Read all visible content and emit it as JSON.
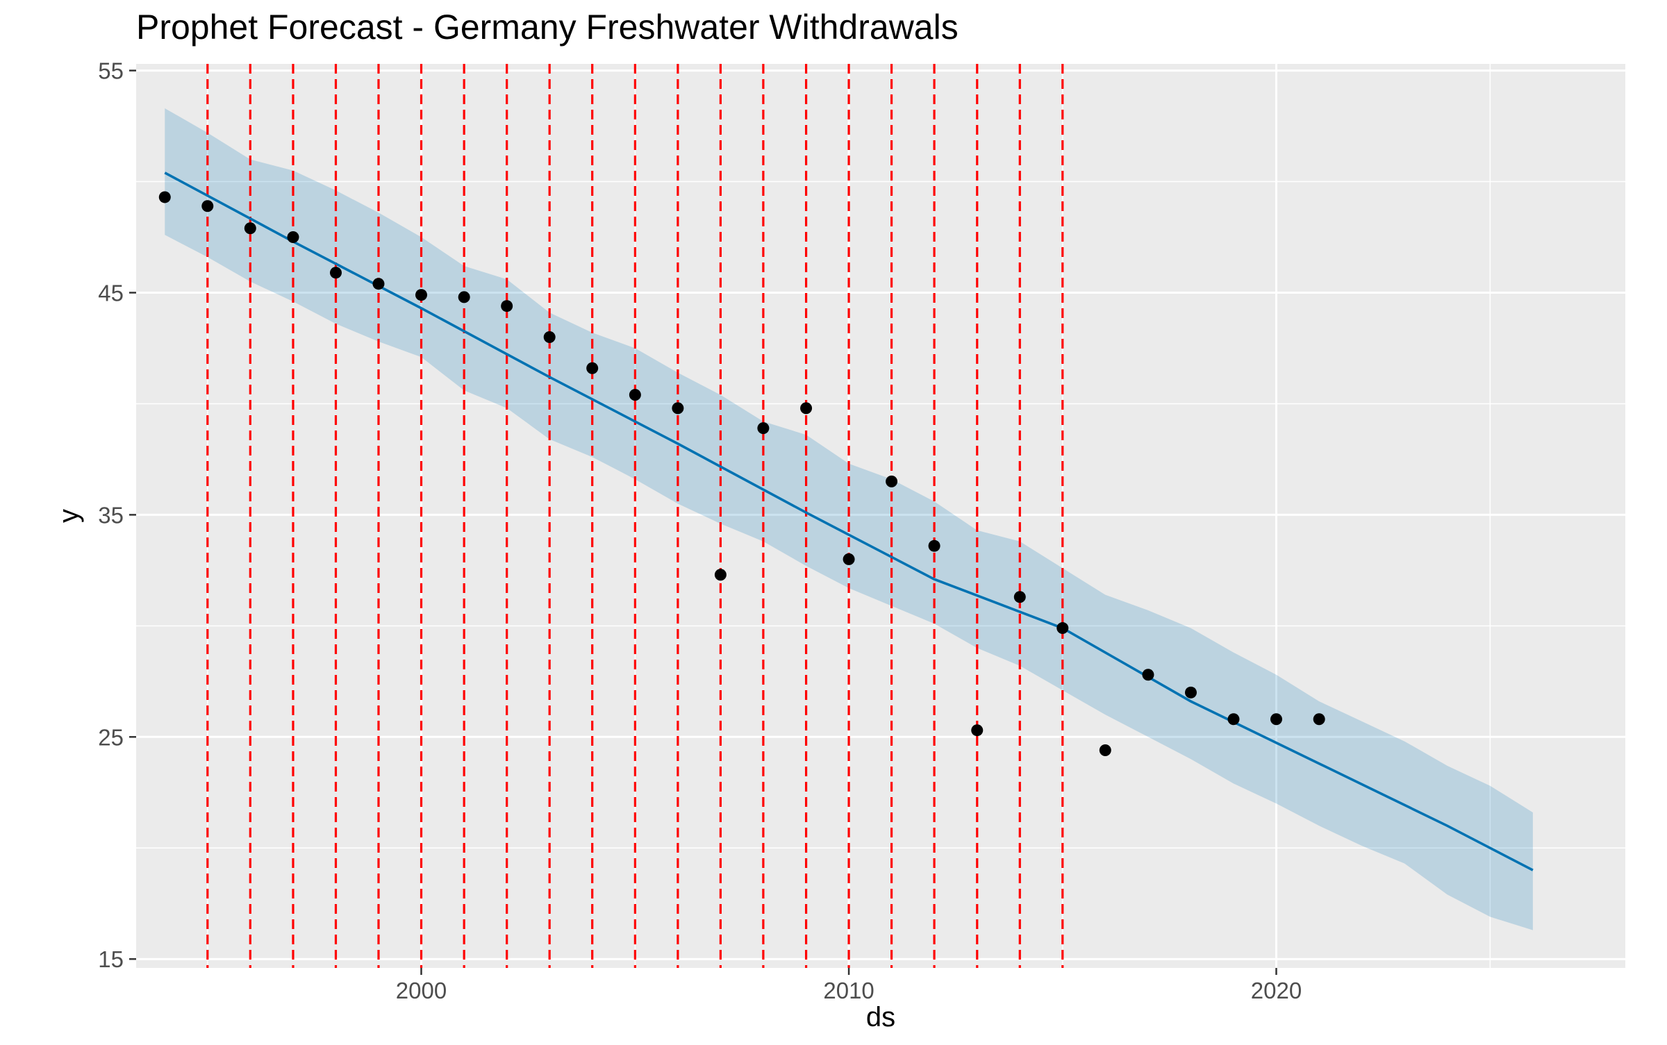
{
  "chart_data": {
    "type": "line",
    "title": "Prophet Forecast - Germany Freshwater Withdrawals",
    "xlabel": "ds",
    "ylabel": "y",
    "xlim": [
      "1993-05-01",
      "2028-03-01"
    ],
    "ylim": [
      14.6,
      55.3
    ],
    "x_ticks": [
      {
        "label": "2000",
        "date": "2000-01-01"
      },
      {
        "label": "2010",
        "date": "2010-01-01"
      },
      {
        "label": "2020",
        "date": "2020-01-01"
      }
    ],
    "y_ticks": [
      {
        "label": "15",
        "value": 15
      },
      {
        "label": "25",
        "value": 25
      },
      {
        "label": "35",
        "value": 35
      },
      {
        "label": "45",
        "value": 45
      },
      {
        "label": "55",
        "value": 55
      }
    ],
    "y_minor_ticks": [
      20,
      30,
      40,
      50
    ],
    "x_minor_ticks": [
      "1995-01-01",
      "2005-01-01",
      "2015-01-01",
      "2025-01-01"
    ],
    "grid": true,
    "colors": {
      "panel_background": "#ebebeb",
      "grid": "#ffffff",
      "forecast_line": "#0072b2",
      "interval_band": "#0072b2",
      "observed_points": "#000000",
      "changepoints": "#ff0000",
      "axis_text": "#4d4d4d",
      "title_text": "#000000"
    },
    "series": [
      {
        "kind": "observed",
        "points": [
          {
            "x": "1994-01-01",
            "y": 49.3
          },
          {
            "x": "1995-01-01",
            "y": 48.9
          },
          {
            "x": "1996-01-01",
            "y": 47.9
          },
          {
            "x": "1997-01-01",
            "y": 47.5
          },
          {
            "x": "1998-01-01",
            "y": 45.9
          },
          {
            "x": "1999-01-01",
            "y": 45.4
          },
          {
            "x": "2000-01-01",
            "y": 44.9
          },
          {
            "x": "2001-01-01",
            "y": 44.8
          },
          {
            "x": "2002-01-01",
            "y": 44.4
          },
          {
            "x": "2003-01-01",
            "y": 43.0
          },
          {
            "x": "2004-01-01",
            "y": 41.6
          },
          {
            "x": "2005-01-01",
            "y": 40.4
          },
          {
            "x": "2006-01-01",
            "y": 39.8
          },
          {
            "x": "2007-01-01",
            "y": 32.3
          },
          {
            "x": "2008-01-01",
            "y": 38.9
          },
          {
            "x": "2009-01-01",
            "y": 39.8
          },
          {
            "x": "2010-01-01",
            "y": 33.0
          },
          {
            "x": "2011-01-01",
            "y": 36.5
          },
          {
            "x": "2012-01-01",
            "y": 33.6
          },
          {
            "x": "2013-01-01",
            "y": 25.3
          },
          {
            "x": "2014-01-01",
            "y": 31.3
          },
          {
            "x": "2015-01-01",
            "y": 29.9
          },
          {
            "x": "2016-01-01",
            "y": 24.4
          },
          {
            "x": "2017-01-01",
            "y": 27.8
          },
          {
            "x": "2018-01-01",
            "y": 27.0
          },
          {
            "x": "2019-01-01",
            "y": 25.8
          },
          {
            "x": "2020-01-01",
            "y": 25.8
          },
          {
            "x": "2021-01-01",
            "y": 25.8
          }
        ]
      },
      {
        "kind": "forecast",
        "points": [
          {
            "x": "1994-01-01",
            "y": 50.4
          },
          {
            "x": "1997-01-01",
            "y": 47.3
          },
          {
            "x": "2000-01-01",
            "y": 44.3
          },
          {
            "x": "2003-01-01",
            "y": 41.2
          },
          {
            "x": "2006-01-01",
            "y": 38.2
          },
          {
            "x": "2009-01-01",
            "y": 35.1
          },
          {
            "x": "2012-01-01",
            "y": 32.1
          },
          {
            "x": "2015-01-01",
            "y": 29.9
          },
          {
            "x": "2018-01-01",
            "y": 26.6
          },
          {
            "x": "2021-01-01",
            "y": 23.8
          },
          {
            "x": "2024-01-01",
            "y": 21.0
          },
          {
            "x": "2026-01-01",
            "y": 19.0
          }
        ]
      },
      {
        "kind": "interval",
        "points": [
          {
            "x": "1994-01-01",
            "lower": 47.6,
            "upper": 53.3
          },
          {
            "x": "1995-01-01",
            "lower": 46.6,
            "upper": 52.2
          },
          {
            "x": "1996-01-01",
            "lower": 45.5,
            "upper": 51.0
          },
          {
            "x": "1997-01-01",
            "lower": 44.6,
            "upper": 50.5
          },
          {
            "x": "1998-01-01",
            "lower": 43.6,
            "upper": 49.6
          },
          {
            "x": "1999-01-01",
            "lower": 42.8,
            "upper": 48.6
          },
          {
            "x": "2000-01-01",
            "lower": 42.1,
            "upper": 47.5
          },
          {
            "x": "2001-01-01",
            "lower": 40.6,
            "upper": 46.2
          },
          {
            "x": "2002-01-01",
            "lower": 39.8,
            "upper": 45.6
          },
          {
            "x": "2003-01-01",
            "lower": 38.4,
            "upper": 44.1
          },
          {
            "x": "2004-01-01",
            "lower": 37.6,
            "upper": 43.2
          },
          {
            "x": "2005-01-01",
            "lower": 36.6,
            "upper": 42.5
          },
          {
            "x": "2006-01-01",
            "lower": 35.5,
            "upper": 41.4
          },
          {
            "x": "2007-01-01",
            "lower": 34.6,
            "upper": 40.4
          },
          {
            "x": "2008-01-01",
            "lower": 33.8,
            "upper": 39.2
          },
          {
            "x": "2009-01-01",
            "lower": 32.7,
            "upper": 38.6
          },
          {
            "x": "2010-01-01",
            "lower": 31.7,
            "upper": 37.3
          },
          {
            "x": "2011-01-01",
            "lower": 30.9,
            "upper": 36.6
          },
          {
            "x": "2012-01-01",
            "lower": 30.1,
            "upper": 35.6
          },
          {
            "x": "2013-01-01",
            "lower": 29.0,
            "upper": 34.3
          },
          {
            "x": "2014-01-01",
            "lower": 28.2,
            "upper": 33.8
          },
          {
            "x": "2015-01-01",
            "lower": 27.1,
            "upper": 32.6
          },
          {
            "x": "2016-01-01",
            "lower": 26.0,
            "upper": 31.4
          },
          {
            "x": "2017-01-01",
            "lower": 25.0,
            "upper": 30.7
          },
          {
            "x": "2018-01-01",
            "lower": 24.0,
            "upper": 29.9
          },
          {
            "x": "2019-01-01",
            "lower": 22.9,
            "upper": 28.8
          },
          {
            "x": "2020-01-01",
            "lower": 22.0,
            "upper": 27.8
          },
          {
            "x": "2021-01-01",
            "lower": 21.0,
            "upper": 26.6
          },
          {
            "x": "2022-01-01",
            "lower": 20.1,
            "upper": 25.7
          },
          {
            "x": "2023-01-01",
            "lower": 19.3,
            "upper": 24.8
          },
          {
            "x": "2024-01-01",
            "lower": 17.9,
            "upper": 23.7
          },
          {
            "x": "2025-01-01",
            "lower": 16.9,
            "upper": 22.8
          },
          {
            "x": "2026-01-01",
            "lower": 16.3,
            "upper": 21.6
          }
        ]
      },
      {
        "kind": "changepoints",
        "dates": [
          "1995-01-01",
          "1996-01-01",
          "1997-01-01",
          "1998-01-01",
          "1999-01-01",
          "2000-01-01",
          "2001-01-01",
          "2002-01-01",
          "2003-01-01",
          "2004-01-01",
          "2005-01-01",
          "2006-01-01",
          "2007-01-01",
          "2008-01-01",
          "2009-01-01",
          "2010-01-01",
          "2011-01-01",
          "2012-01-01",
          "2013-01-01",
          "2014-01-01",
          "2015-01-01"
        ]
      }
    ]
  }
}
